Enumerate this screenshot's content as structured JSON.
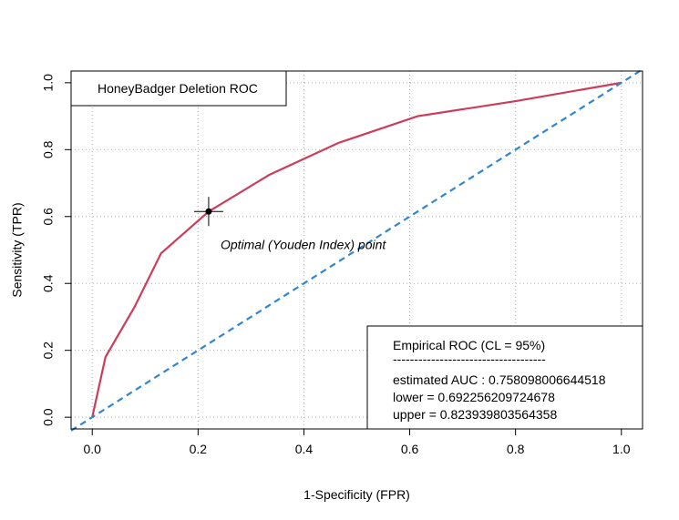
{
  "chart_data": {
    "type": "line",
    "title": "",
    "xlabel": "1-Specificity (FPR)",
    "ylabel": "Sensitivity (TPR)",
    "xlim": [
      -0.04,
      1.04
    ],
    "ylim": [
      -0.035,
      1.035
    ],
    "x_ticks": [
      "0.0",
      "0.2",
      "0.4",
      "0.6",
      "0.8",
      "1.0"
    ],
    "y_ticks": [
      "0.0",
      "0.2",
      "0.4",
      "0.6",
      "0.8",
      "1.0"
    ],
    "grid": true,
    "series": [
      {
        "name": "",
        "color": "#cd3c5a",
        "x": [
          0.0,
          0.025,
          0.08,
          0.13,
          0.22,
          0.335,
          0.465,
          0.615,
          0.8,
          1.0
        ],
        "y": [
          0.0,
          0.18,
          0.33,
          0.49,
          0.615,
          0.725,
          0.82,
          0.9,
          0.945,
          1.0
        ]
      },
      {
        "name": "",
        "color": "#2f86d1",
        "x": [
          -0.04,
          1.04
        ],
        "y": [
          -0.04,
          1.04
        ],
        "dashed": true
      }
    ],
    "optimal_point": {
      "x": 0.22,
      "y": 0.615,
      "label": "Optimal (Youden Index) point"
    },
    "legend_topleft": {
      "text": "HoneyBadger Deletion ROC"
    },
    "legend_bottomright": {
      "lines": [
        "Empirical ROC (CL = 95%)",
        "------------------------------------",
        "estimated AUC : 0.758098006644518",
        "lower = 0.692256209724678",
        "upper = 0.823939803564358"
      ]
    }
  }
}
